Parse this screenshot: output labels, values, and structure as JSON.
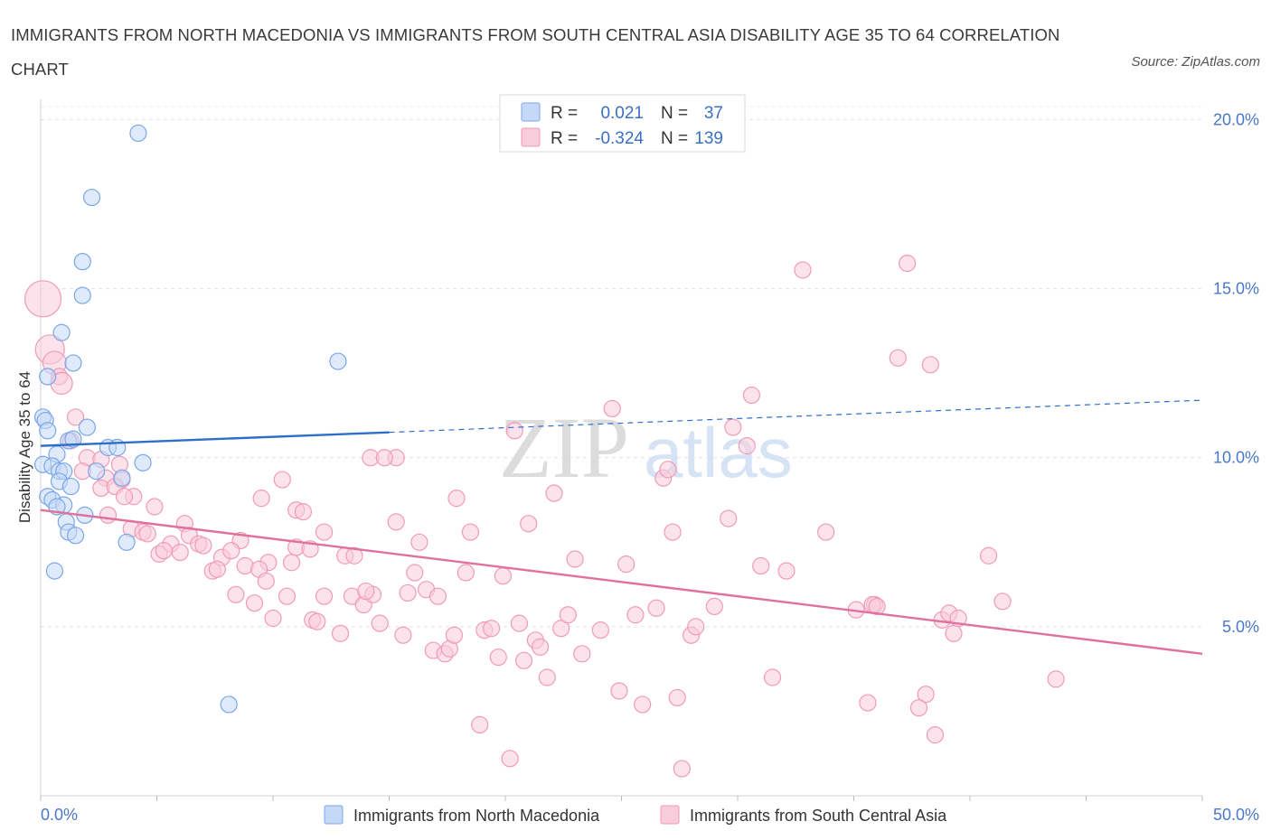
{
  "chart_data": {
    "type": "scatter",
    "title": "IMMIGRANTS FROM NORTH MACEDONIA VS IMMIGRANTS FROM SOUTH CENTRAL ASIA DISABILITY AGE 35 TO 64 CORRELATION CHART",
    "source": "Source: ZipAtlas.com",
    "watermark": "ZIPatlas",
    "xlabel": "",
    "ylabel": "Disability Age 35 to 64",
    "xlim": [
      0,
      50
    ],
    "ylim": [
      0,
      20.6
    ],
    "x_tick_labels": [
      {
        "value": 0,
        "label": "0.0%"
      },
      {
        "value": 50,
        "label": "50.0%"
      }
    ],
    "y_tick_labels": [
      {
        "value": 5,
        "label": "5.0%"
      },
      {
        "value": 10,
        "label": "10.0%"
      },
      {
        "value": 15,
        "label": "15.0%"
      },
      {
        "value": 20,
        "label": "20.0%"
      }
    ],
    "legend_stats": [
      {
        "r_label": "R =",
        "r_value": "0.021",
        "n_label": "N =",
        "n_value": "37"
      },
      {
        "r_label": "R =",
        "r_value": "-0.324",
        "n_label": "N =",
        "n_value": "139"
      }
    ],
    "series": [
      {
        "name": "Immigrants from North Macedonia",
        "color": "#7aa7e8",
        "fill": "#c5d9f6",
        "line_color": "#2e6fc9",
        "trend": {
          "x0": 0,
          "y0": 10.35,
          "x1": 15,
          "y1": 10.75,
          "x_dash_end": 50,
          "y_dash_end": 11.7
        },
        "points": [
          {
            "x": 4.2,
            "y": 19.6
          },
          {
            "x": 2.2,
            "y": 17.7
          },
          {
            "x": 1.8,
            "y": 15.8
          },
          {
            "x": 1.8,
            "y": 14.8
          },
          {
            "x": 0.9,
            "y": 13.7
          },
          {
            "x": 1.4,
            "y": 12.8
          },
          {
            "x": 0.3,
            "y": 12.4
          },
          {
            "x": 0.1,
            "y": 11.2
          },
          {
            "x": 0.2,
            "y": 11.1
          },
          {
            "x": 0.3,
            "y": 10.8
          },
          {
            "x": 2.0,
            "y": 10.9
          },
          {
            "x": 1.2,
            "y": 10.5
          },
          {
            "x": 1.4,
            "y": 10.55
          },
          {
            "x": 2.9,
            "y": 10.3
          },
          {
            "x": 3.3,
            "y": 10.3
          },
          {
            "x": 0.7,
            "y": 10.1
          },
          {
            "x": 0.1,
            "y": 9.8
          },
          {
            "x": 0.5,
            "y": 9.75
          },
          {
            "x": 0.8,
            "y": 9.6
          },
          {
            "x": 1.0,
            "y": 9.6
          },
          {
            "x": 2.4,
            "y": 9.6
          },
          {
            "x": 4.4,
            "y": 9.85
          },
          {
            "x": 0.8,
            "y": 9.3
          },
          {
            "x": 1.3,
            "y": 9.15
          },
          {
            "x": 3.5,
            "y": 9.4
          },
          {
            "x": 0.3,
            "y": 8.85
          },
          {
            "x": 0.5,
            "y": 8.75
          },
          {
            "x": 1.0,
            "y": 8.6
          },
          {
            "x": 0.7,
            "y": 8.55
          },
          {
            "x": 1.9,
            "y": 8.3
          },
          {
            "x": 1.1,
            "y": 8.1
          },
          {
            "x": 1.2,
            "y": 7.8
          },
          {
            "x": 1.5,
            "y": 7.7
          },
          {
            "x": 3.7,
            "y": 7.5
          },
          {
            "x": 0.6,
            "y": 6.65
          },
          {
            "x": 12.8,
            "y": 12.85
          },
          {
            "x": 8.1,
            "y": 2.7
          }
        ]
      },
      {
        "name": "Immigrants from South Central Asia",
        "color": "#f19ab8",
        "fill": "#f9ccdb",
        "line_color": "#e0709c",
        "trend": {
          "x0": 0,
          "y0": 8.45,
          "x1": 50,
          "y1": 4.2
        },
        "points": [
          {
            "x": 0.1,
            "y": 14.7
          },
          {
            "x": 0.4,
            "y": 13.2
          },
          {
            "x": 0.6,
            "y": 12.8
          },
          {
            "x": 0.8,
            "y": 12.4
          },
          {
            "x": 0.9,
            "y": 12.2
          },
          {
            "x": 1.5,
            "y": 11.2
          },
          {
            "x": 1.3,
            "y": 10.5
          },
          {
            "x": 2.0,
            "y": 10.0
          },
          {
            "x": 2.6,
            "y": 9.95
          },
          {
            "x": 1.8,
            "y": 9.6
          },
          {
            "x": 3.4,
            "y": 9.8
          },
          {
            "x": 2.8,
            "y": 9.4
          },
          {
            "x": 3.5,
            "y": 9.35
          },
          {
            "x": 2.6,
            "y": 9.1
          },
          {
            "x": 3.2,
            "y": 9.15
          },
          {
            "x": 4.0,
            "y": 8.85
          },
          {
            "x": 3.6,
            "y": 8.85
          },
          {
            "x": 2.9,
            "y": 8.3
          },
          {
            "x": 4.9,
            "y": 8.55
          },
          {
            "x": 6.2,
            "y": 8.05
          },
          {
            "x": 3.9,
            "y": 7.9
          },
          {
            "x": 4.4,
            "y": 7.8
          },
          {
            "x": 4.6,
            "y": 7.75
          },
          {
            "x": 6.4,
            "y": 7.7
          },
          {
            "x": 5.6,
            "y": 7.45
          },
          {
            "x": 6.8,
            "y": 7.45
          },
          {
            "x": 7.0,
            "y": 7.4
          },
          {
            "x": 8.6,
            "y": 7.55
          },
          {
            "x": 5.1,
            "y": 7.15
          },
          {
            "x": 5.3,
            "y": 7.25
          },
          {
            "x": 6.0,
            "y": 7.2
          },
          {
            "x": 7.8,
            "y": 7.05
          },
          {
            "x": 8.2,
            "y": 7.25
          },
          {
            "x": 9.5,
            "y": 8.8
          },
          {
            "x": 9.8,
            "y": 6.9
          },
          {
            "x": 7.4,
            "y": 6.65
          },
          {
            "x": 7.6,
            "y": 6.7
          },
          {
            "x": 8.8,
            "y": 6.8
          },
          {
            "x": 9.4,
            "y": 6.7
          },
          {
            "x": 10.8,
            "y": 6.9
          },
          {
            "x": 11.0,
            "y": 7.35
          },
          {
            "x": 11.6,
            "y": 7.3
          },
          {
            "x": 11.0,
            "y": 8.45
          },
          {
            "x": 11.3,
            "y": 8.4
          },
          {
            "x": 10.4,
            "y": 9.35
          },
          {
            "x": 12.2,
            "y": 7.8
          },
          {
            "x": 13.1,
            "y": 7.1
          },
          {
            "x": 13.5,
            "y": 7.1
          },
          {
            "x": 8.4,
            "y": 5.95
          },
          {
            "x": 9.2,
            "y": 5.7
          },
          {
            "x": 9.7,
            "y": 6.35
          },
          {
            "x": 10.6,
            "y": 5.9
          },
          {
            "x": 10.0,
            "y": 5.25
          },
          {
            "x": 11.7,
            "y": 5.2
          },
          {
            "x": 11.9,
            "y": 5.15
          },
          {
            "x": 12.2,
            "y": 5.9
          },
          {
            "x": 12.9,
            "y": 4.8
          },
          {
            "x": 13.4,
            "y": 5.9
          },
          {
            "x": 13.9,
            "y": 5.65
          },
          {
            "x": 14.3,
            "y": 5.95
          },
          {
            "x": 14.0,
            "y": 6.05
          },
          {
            "x": 14.6,
            "y": 5.1
          },
          {
            "x": 15.3,
            "y": 10.0
          },
          {
            "x": 14.2,
            "y": 10.0
          },
          {
            "x": 14.8,
            "y": 10.0
          },
          {
            "x": 15.3,
            "y": 8.1
          },
          {
            "x": 15.8,
            "y": 6.0
          },
          {
            "x": 15.6,
            "y": 4.75
          },
          {
            "x": 16.1,
            "y": 6.6
          },
          {
            "x": 16.3,
            "y": 7.5
          },
          {
            "x": 16.6,
            "y": 6.1
          },
          {
            "x": 17.1,
            "y": 5.9
          },
          {
            "x": 16.9,
            "y": 4.3
          },
          {
            "x": 17.4,
            "y": 4.2
          },
          {
            "x": 17.6,
            "y": 4.35
          },
          {
            "x": 17.8,
            "y": 4.75
          },
          {
            "x": 17.9,
            "y": 8.8
          },
          {
            "x": 18.3,
            "y": 6.6
          },
          {
            "x": 18.5,
            "y": 7.8
          },
          {
            "x": 18.9,
            "y": 2.1
          },
          {
            "x": 19.1,
            "y": 4.9
          },
          {
            "x": 19.4,
            "y": 4.95
          },
          {
            "x": 19.7,
            "y": 4.1
          },
          {
            "x": 19.9,
            "y": 6.5
          },
          {
            "x": 20.2,
            "y": 1.1
          },
          {
            "x": 20.4,
            "y": 10.8
          },
          {
            "x": 20.6,
            "y": 5.1
          },
          {
            "x": 20.8,
            "y": 4.0
          },
          {
            "x": 21.0,
            "y": 8.05
          },
          {
            "x": 21.3,
            "y": 4.6
          },
          {
            "x": 21.5,
            "y": 4.4
          },
          {
            "x": 21.8,
            "y": 3.5
          },
          {
            "x": 22.1,
            "y": 8.95
          },
          {
            "x": 22.4,
            "y": 4.95
          },
          {
            "x": 22.7,
            "y": 5.35
          },
          {
            "x": 23.0,
            "y": 7.0
          },
          {
            "x": 23.3,
            "y": 4.2
          },
          {
            "x": 24.1,
            "y": 4.9
          },
          {
            "x": 24.6,
            "y": 11.45
          },
          {
            "x": 24.9,
            "y": 3.1
          },
          {
            "x": 25.2,
            "y": 6.85
          },
          {
            "x": 25.6,
            "y": 5.35
          },
          {
            "x": 25.9,
            "y": 2.7
          },
          {
            "x": 26.5,
            "y": 5.55
          },
          {
            "x": 26.8,
            "y": 9.4
          },
          {
            "x": 27.0,
            "y": 9.65
          },
          {
            "x": 27.2,
            "y": 7.8
          },
          {
            "x": 27.4,
            "y": 2.9
          },
          {
            "x": 27.6,
            "y": 0.8
          },
          {
            "x": 28.0,
            "y": 4.75
          },
          {
            "x": 28.2,
            "y": 5.0
          },
          {
            "x": 29.0,
            "y": 5.6
          },
          {
            "x": 29.8,
            "y": 10.9
          },
          {
            "x": 30.4,
            "y": 10.35
          },
          {
            "x": 29.6,
            "y": 8.2
          },
          {
            "x": 30.6,
            "y": 11.85
          },
          {
            "x": 31.0,
            "y": 6.8
          },
          {
            "x": 31.5,
            "y": 3.5
          },
          {
            "x": 32.1,
            "y": 6.65
          },
          {
            "x": 32.8,
            "y": 15.55
          },
          {
            "x": 33.8,
            "y": 7.8
          },
          {
            "x": 35.1,
            "y": 5.5
          },
          {
            "x": 35.6,
            "y": 2.75
          },
          {
            "x": 35.9,
            "y": 5.65
          },
          {
            "x": 35.8,
            "y": 5.65
          },
          {
            "x": 36.9,
            "y": 12.95
          },
          {
            "x": 38.1,
            "y": 3.0
          },
          {
            "x": 37.8,
            "y": 2.6
          },
          {
            "x": 38.3,
            "y": 12.75
          },
          {
            "x": 38.8,
            "y": 5.2
          },
          {
            "x": 39.1,
            "y": 5.4
          },
          {
            "x": 37.3,
            "y": 15.75
          },
          {
            "x": 39.3,
            "y": 4.8
          },
          {
            "x": 39.5,
            "y": 5.25
          },
          {
            "x": 38.5,
            "y": 1.8
          },
          {
            "x": 40.8,
            "y": 7.1
          },
          {
            "x": 41.4,
            "y": 5.75
          },
          {
            "x": 43.7,
            "y": 3.45
          },
          {
            "x": 36.0,
            "y": 5.6
          }
        ]
      }
    ]
  }
}
